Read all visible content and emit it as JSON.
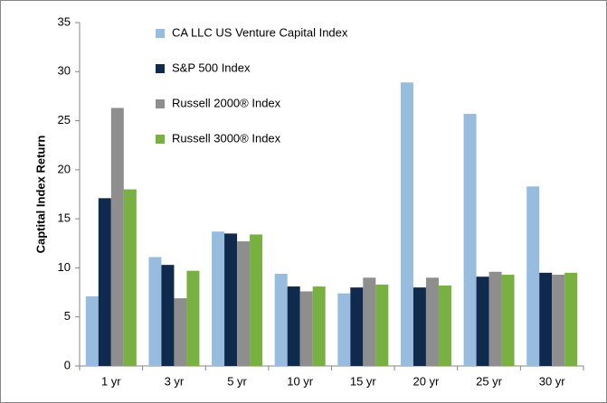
{
  "chart_data": {
    "type": "bar",
    "ylabel": "Captital Index Return",
    "categories": [
      "1 yr",
      "3 yr",
      "5 yr",
      "10 yr",
      "15 yr",
      "20 yr",
      "25 yr",
      "30 yr"
    ],
    "series": [
      {
        "name": "CA LLC US Venture Capital Index",
        "color": "#98bcdd",
        "values": [
          7.1,
          11.1,
          13.7,
          9.4,
          7.4,
          28.9,
          25.7,
          18.3
        ]
      },
      {
        "name": "S&P 500 Index",
        "color": "#0f2a4c",
        "values": [
          17.1,
          10.3,
          13.5,
          8.1,
          8.0,
          8.0,
          9.1,
          9.5
        ]
      },
      {
        "name": "Russell 2000® Index",
        "color": "#8e8e8e",
        "values": [
          26.3,
          6.9,
          12.7,
          7.6,
          9.0,
          9.0,
          9.6,
          9.3
        ]
      },
      {
        "name": "Russell 3000® Index",
        "color": "#78b042",
        "values": [
          18.0,
          9.7,
          13.4,
          8.1,
          8.3,
          8.2,
          9.3,
          9.5
        ]
      }
    ],
    "ylim": [
      0,
      35
    ],
    "yticks": [
      0,
      5,
      10,
      15,
      20,
      25,
      30,
      35
    ],
    "grid": false,
    "legend": "upper left"
  }
}
